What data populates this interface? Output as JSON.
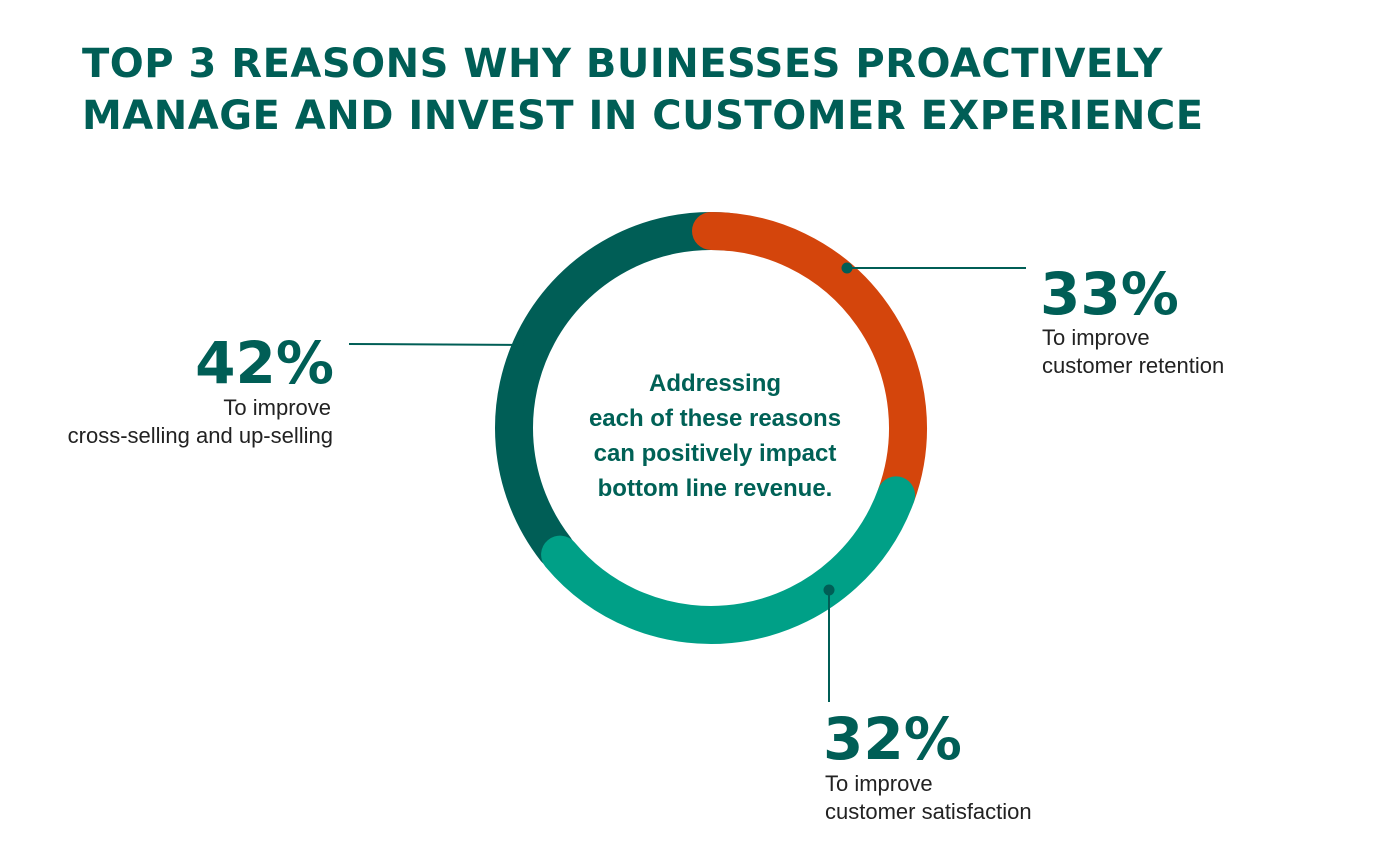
{
  "title": {
    "line1": "TOP 3 REASONS WHY BUINESSES PROACTIVELY",
    "line2": "MANAGE AND INVEST IN CUSTOMER EXPERIENCE"
  },
  "center_text": {
    "line1": "Addressing",
    "line2": "each of these reasons",
    "line3": "can positively impact",
    "line4": "bottom line revenue."
  },
  "colors": {
    "title": "#005e56",
    "dark_green": "#005e56",
    "orange": "#d4450c",
    "teal": "#00a087"
  },
  "chart_data": {
    "type": "donut",
    "title": "TOP 3 REASONS WHY BUINESSES PROACTIVELY MANAGE AND INVEST IN CUSTOMER EXPERIENCE",
    "series": [
      {
        "value_label": "33%",
        "value": 33,
        "line1": "To improve",
        "line2": "customer retention",
        "color": "#d4450c"
      },
      {
        "value_label": "32%",
        "value": 32,
        "line1": "To improve",
        "line2": "customer satisfaction",
        "color": "#00a087"
      },
      {
        "value_label": "42%",
        "value": 42,
        "line1": "To improve",
        "line2": "cross-selling and up-selling",
        "color": "#005e56"
      }
    ]
  }
}
